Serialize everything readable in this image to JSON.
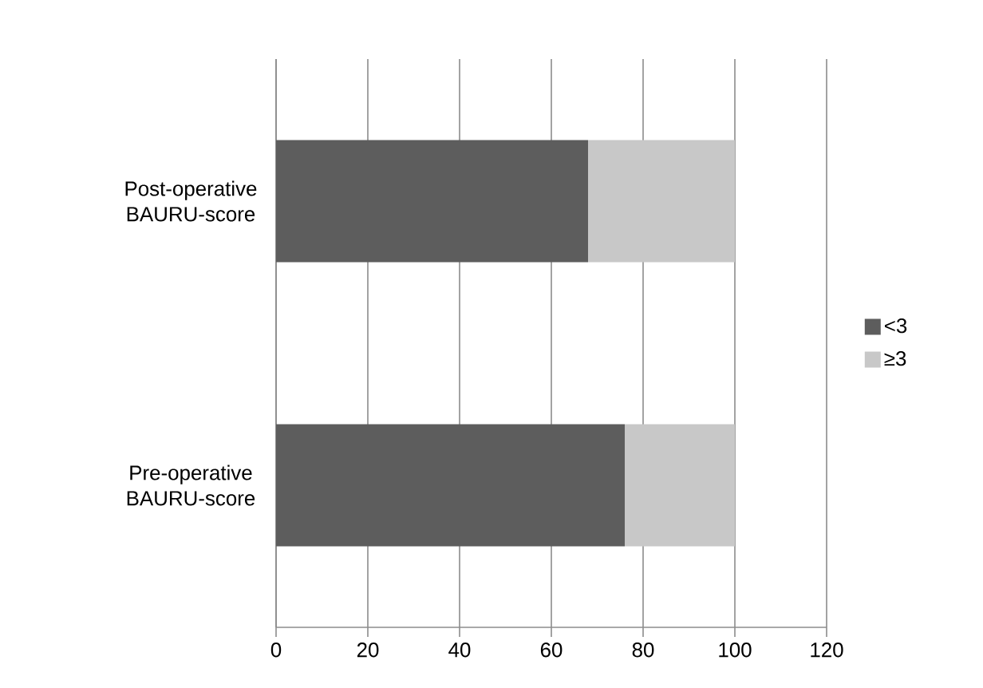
{
  "chart_data": {
    "type": "bar",
    "orientation": "horizontal",
    "stacked": true,
    "categories": [
      "Post-operative BAURU-score",
      "Pre-operative BAURU-score"
    ],
    "series": [
      {
        "name": "<3",
        "color": "#5d5d5d",
        "values": [
          68,
          76
        ]
      },
      {
        "name": "≥3",
        "color": "#c8c8c8",
        "values": [
          32,
          24
        ]
      }
    ],
    "xlim": [
      0,
      120
    ],
    "xticks": [
      0,
      20,
      40,
      60,
      80,
      100,
      120
    ],
    "grid": "x",
    "legend": "right"
  }
}
